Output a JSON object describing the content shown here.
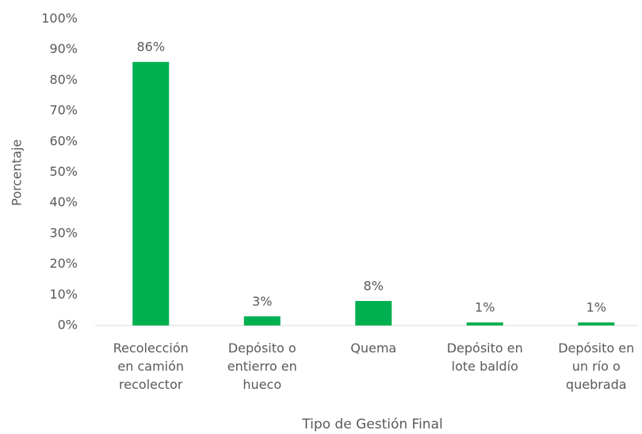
{
  "chart_data": {
    "type": "bar",
    "x_label": "Tipo de Gestión Final",
    "y_label": "Porcentaje",
    "categories": [
      "Recolección en camión recolector",
      "Depósito o entierro en hueco",
      "Quema",
      "Depósito en lote baldío",
      "Depósito en un río o quebrada"
    ],
    "values": [
      86,
      3,
      8,
      1,
      1
    ],
    "value_labels": [
      "86%",
      "3%",
      "8%",
      "1%",
      "1%"
    ],
    "color": "#00b050",
    "ylim": [
      0,
      100
    ],
    "yticks": [
      {
        "value": 0,
        "label": "0%"
      },
      {
        "value": 10,
        "label": "10%"
      },
      {
        "value": 20,
        "label": "20%"
      },
      {
        "value": 30,
        "label": "30%"
      },
      {
        "value": 40,
        "label": "40%"
      },
      {
        "value": 50,
        "label": "50%"
      },
      {
        "value": 60,
        "label": "60%"
      },
      {
        "value": 70,
        "label": "70%"
      },
      {
        "value": 80,
        "label": "80%"
      },
      {
        "value": 90,
        "label": "90%"
      },
      {
        "value": 100,
        "label": "100%"
      }
    ],
    "grid": false
  }
}
